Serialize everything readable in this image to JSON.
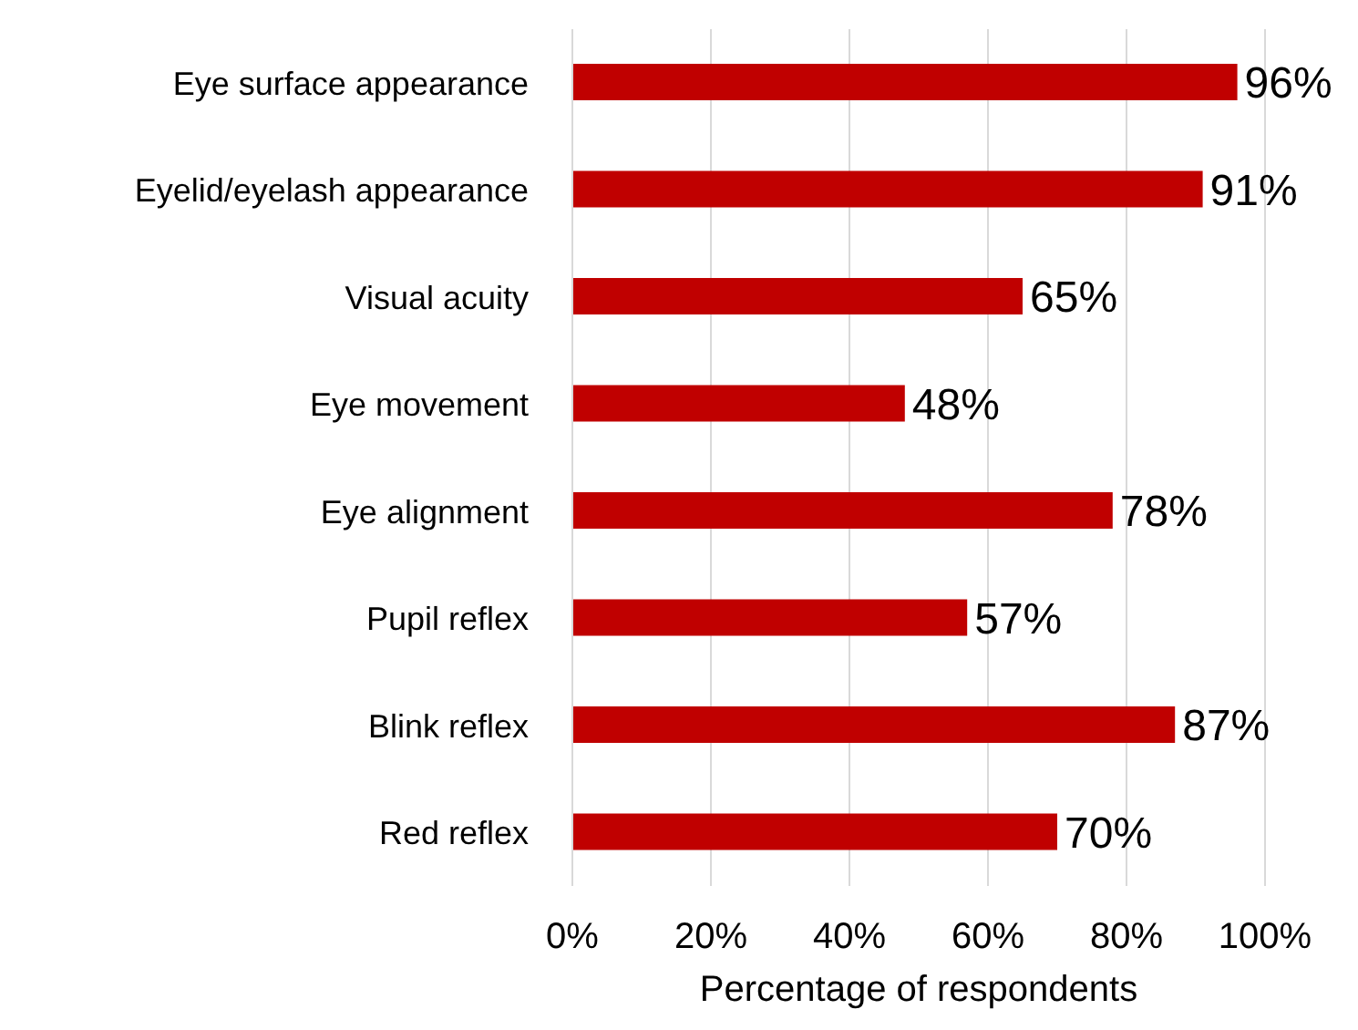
{
  "chart_data": {
    "type": "bar",
    "orientation": "horizontal",
    "xlabel": "Percentage of respondents",
    "categories": [
      "Eye surface appearance",
      "Eyelid/eyelash appearance",
      "Visual acuity",
      "Eye movement",
      "Eye alignment",
      "Pupil reflex",
      "Blink reflex",
      "Red reflex"
    ],
    "values": [
      96,
      91,
      65,
      48,
      78,
      57,
      87,
      70
    ],
    "value_labels": [
      "96%",
      "91%",
      "65%",
      "48%",
      "78%",
      "57%",
      "87%",
      "70%"
    ],
    "color": "#c00000",
    "xlim": [
      0,
      100
    ],
    "xticks": [
      {
        "value": 0,
        "label": "0%"
      },
      {
        "value": 20,
        "label": "20%"
      },
      {
        "value": 40,
        "label": "40%"
      },
      {
        "value": 60,
        "label": "60%"
      },
      {
        "value": 80,
        "label": "80%"
      },
      {
        "value": 100,
        "label": "100%"
      }
    ],
    "grid": "x",
    "legend": false
  }
}
